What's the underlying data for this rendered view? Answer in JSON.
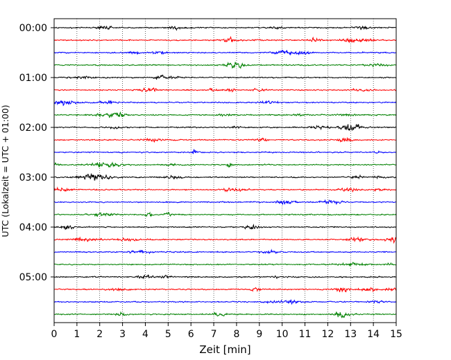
{
  "chart_data": {
    "type": "line",
    "title": "",
    "xlabel": "Zeit  [min]",
    "ylabel": "UTC (Lokalzeit = UTC + 01:00)",
    "xlim": [
      0,
      15
    ],
    "x_ticks": [
      "0",
      "1",
      "2",
      "3",
      "4",
      "5",
      "6",
      "7",
      "8",
      "9",
      "10",
      "11",
      "12",
      "13",
      "14",
      "15"
    ],
    "y_tick_labels": [
      "00:00",
      "01:00",
      "02:00",
      "03:00",
      "04:00",
      "05:00"
    ],
    "trace_interval_minutes": 15,
    "trace_count": 24,
    "trace_colors": [
      "#000000",
      "#ff0000",
      "#0000ff",
      "#008000"
    ],
    "grid": "vertical dotted at each minute"
  }
}
